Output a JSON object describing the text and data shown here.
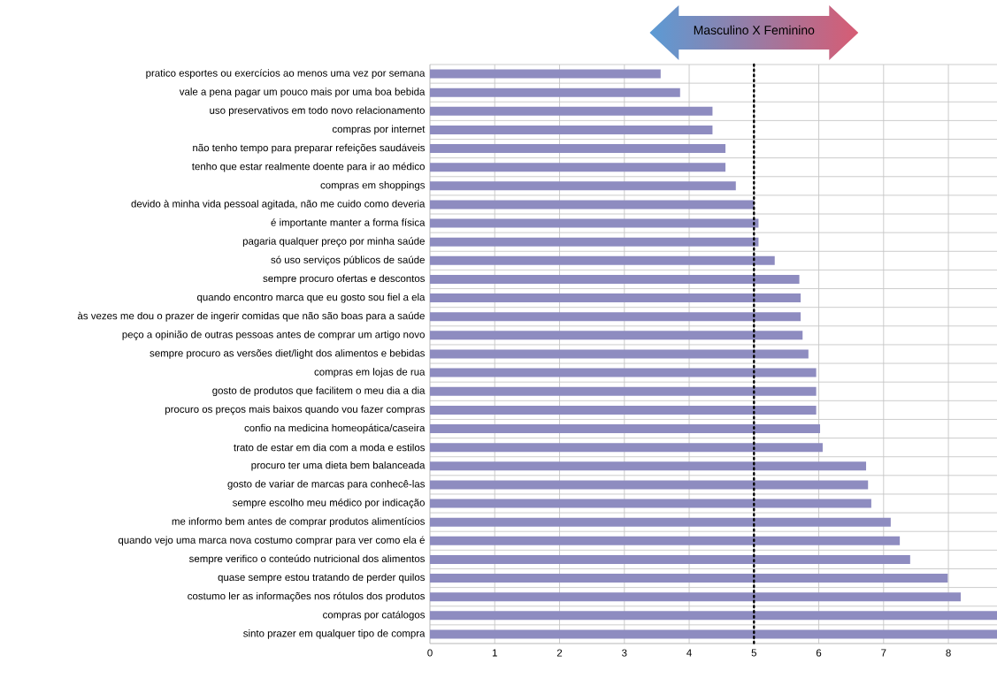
{
  "chart_data": {
    "type": "bar",
    "orientation": "horizontal",
    "categories": [
      "pratico esportes ou exercícios ao menos uma vez por semana",
      "vale a pena pagar um pouco mais por uma boa bebida",
      "uso preservativos em todo novo relacionamento",
      "compras por internet",
      "não tenho tempo para preparar refeições saudáveis",
      "tenho que estar realmente doente para ir ao médico",
      "compras em shoppings",
      "devido à minha vida pessoal agitada, não me cuido como deveria",
      "é importante manter a forma física",
      "pagaria qualquer preço por minha saúde",
      "só uso serviços públicos de saúde",
      "sempre procuro ofertas e descontos",
      "quando encontro marca que eu gosto sou fiel a ela",
      "às vezes me dou o prazer de ingerir comidas que não são boas para a saúde",
      "peço a opinião de outras pessoas antes de comprar um artigo novo",
      "sempre procuro as versões diet/light dos alimentos e bebidas",
      "compras em lojas de rua",
      "gosto de produtos que facilitem o meu dia a dia",
      "procuro os preços mais baixos quando vou fazer compras",
      "confio na medicina homeopática/caseira",
      "trato de estar em dia com a moda e estilos",
      "procuro ter uma dieta bem balanceada",
      "gosto de variar de marcas para conhecê-las",
      "sempre escolho meu médico por indicação",
      "me informo bem antes de comprar produtos alimentícios",
      "quando vejo uma marca nova costumo comprar para ver como ela é",
      "sempre verifico o conteúdo nutricional dos alimentos",
      "quase sempre estou tratando de perder quilos",
      "costumo ler as informações nos rótulos dos produtos",
      "compras por catálogos",
      "sinto prazer em qualquer tipo de compra"
    ],
    "values": [
      3.56,
      3.86,
      4.36,
      4.36,
      4.56,
      4.56,
      4.72,
      5.0,
      5.07,
      5.07,
      5.32,
      5.7,
      5.72,
      5.72,
      5.75,
      5.84,
      5.96,
      5.96,
      5.96,
      6.02,
      6.06,
      6.73,
      6.76,
      6.81,
      7.11,
      7.25,
      7.41,
      7.99,
      8.19,
      8.75,
      8.75
    ],
    "color": "#8e8cc0",
    "xlim": [
      0,
      8.75
    ],
    "xticks": [
      0,
      1,
      2,
      3,
      4,
      5,
      6,
      7,
      8
    ],
    "grid": true,
    "ref_lines": [
      {
        "axis": "x",
        "value": 5,
        "color": "#000000",
        "line_style": "dotted"
      }
    ],
    "annotations": [
      "Masculino X Feminino"
    ]
  }
}
